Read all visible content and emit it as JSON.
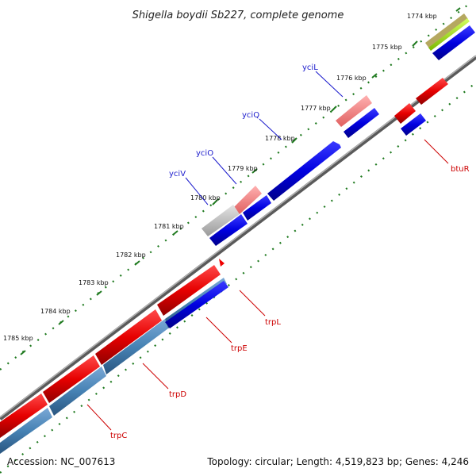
{
  "title": "Shigella boydii Sb227, complete genome",
  "footer": {
    "accession": "Accession: NC_007613",
    "summary": "Topology: circular; Length: 4,519,823 bp; Genes: 4,246"
  },
  "ticks": [
    "1774 kbp",
    "1775 kbp",
    "1776 kbp",
    "1777 kbp",
    "1778 kbp",
    "1779 kbp",
    "1780 kbp",
    "1781 kbp",
    "1782 kbp",
    "1783 kbp",
    "1784 kbp",
    "1785 kbp"
  ],
  "genes": {
    "yciL": "yciL",
    "yciQ": "yciQ",
    "yciO": "yciO",
    "yciV": "yciV",
    "btuR": "btuR",
    "trpL": "trpL",
    "trpE": "trpE",
    "trpD": "trpD",
    "trpC": "trpC"
  },
  "colors": {
    "forward_cds": "#0000ee",
    "reverse_cds": "#ee0000",
    "trp_operon_blue": "#4682b4",
    "backbone": "#888888",
    "gc_skew": "#1f7a1f",
    "pseudo": "#c0c0c0",
    "rna": "#b5cc00"
  }
}
